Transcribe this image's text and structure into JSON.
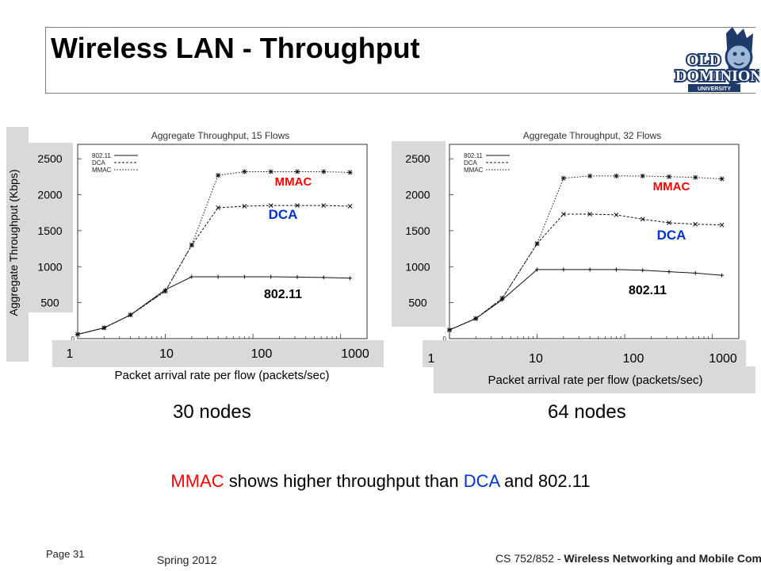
{
  "slide": {
    "title": "Wireless LAN - Throughput",
    "logo_text": "OLD DOMINION UNIVERSITY",
    "ylabel_overlay": "Aggregate Throughput (Kbps)",
    "captions": [
      "30 nodes",
      "64 nodes"
    ],
    "summary": {
      "part1": "MMAC",
      "part2": " shows higher throughput than ",
      "part3": "DCA",
      "part4": " and 802.11"
    },
    "footer": {
      "page": "Page 31",
      "term": "Spring 2012",
      "course_plain": "CS 752/852 - ",
      "course_bold": "Wireless Networking and Mobile Computing"
    }
  },
  "colors": {
    "mmac_label": "#ff0000",
    "dca_label": "#0033cc",
    "overlay_box": "#d9d9d9"
  },
  "chart_data": [
    {
      "type": "line",
      "title": "Aggregate Throughput, 15 Flows",
      "xlabel": "Packet arrival rate per flow (packets/sec)",
      "ylabel": "Aggregate Throughput (Kbps)",
      "x_scale": "log",
      "xlim": [
        1,
        2000
      ],
      "ylim": [
        0,
        2700
      ],
      "x_ticks": [
        "1",
        "10",
        "100",
        "1000"
      ],
      "y_ticks": [
        "500",
        "1000",
        "1500",
        "2000",
        "2500"
      ],
      "y_zero_label": "0",
      "legend": [
        "802.11",
        "DCA",
        "MMAC"
      ],
      "legend_position": "top-left",
      "x": [
        1,
        2,
        4,
        10,
        20,
        40,
        80,
        160,
        320,
        640,
        1280
      ],
      "series": [
        {
          "name": "802.11",
          "label": "802.11",
          "values": [
            60,
            150,
            330,
            680,
            860,
            860,
            860,
            860,
            855,
            850,
            840
          ]
        },
        {
          "name": "DCA",
          "label": "DCA",
          "values": [
            60,
            150,
            330,
            660,
            1300,
            1820,
            1840,
            1850,
            1850,
            1850,
            1840
          ]
        },
        {
          "name": "MMAC",
          "label": "MMAC",
          "values": [
            60,
            150,
            330,
            660,
            1300,
            2270,
            2320,
            2320,
            2320,
            2320,
            2310
          ]
        }
      ]
    },
    {
      "type": "line",
      "title": "Aggregate Throughput, 32 Flows",
      "xlabel": "Packet arrival rate per flow (packets/sec)",
      "ylabel": "Aggregate Throughput (Kbps)",
      "x_scale": "log",
      "xlim": [
        1,
        2000
      ],
      "ylim": [
        0,
        2700
      ],
      "x_ticks": [
        "1",
        "10",
        "100",
        "1000"
      ],
      "y_ticks": [
        "500",
        "1000",
        "1500",
        "2000",
        "2500"
      ],
      "y_zero_label": "0",
      "legend": [
        "802.11",
        "DCA",
        "MMAC"
      ],
      "legend_position": "top-left",
      "x": [
        1,
        2,
        4,
        10,
        20,
        40,
        80,
        160,
        320,
        640,
        1280
      ],
      "series": [
        {
          "name": "802.11",
          "label": "802.11",
          "values": [
            120,
            280,
            540,
            960,
            960,
            960,
            960,
            950,
            930,
            910,
            880
          ]
        },
        {
          "name": "DCA",
          "label": "DCA",
          "values": [
            120,
            280,
            560,
            1320,
            1730,
            1730,
            1720,
            1660,
            1610,
            1590,
            1580
          ]
        },
        {
          "name": "MMAC",
          "label": "MMAC",
          "values": [
            120,
            280,
            560,
            1320,
            2230,
            2260,
            2260,
            2260,
            2250,
            2240,
            2220
          ]
        }
      ]
    }
  ]
}
